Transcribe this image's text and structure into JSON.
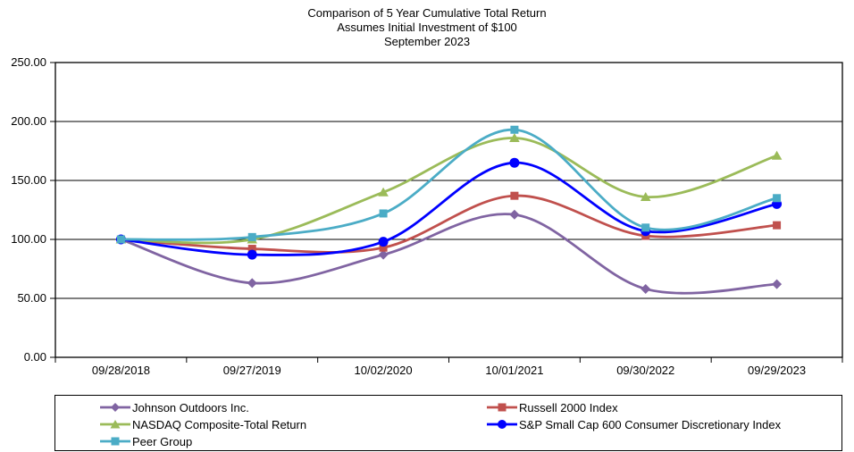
{
  "chart_data": {
    "type": "line",
    "title": "Comparison of 5 Year Cumulative Total Return",
    "subtitle": "Assumes Initial Investment of $100",
    "date_label": "September 2023",
    "categories": [
      "09/28/2018",
      "09/27/2019",
      "10/02/2020",
      "10/01/2021",
      "09/30/2022",
      "09/29/2023"
    ],
    "y_tick_labels": [
      "0.00",
      "50.00",
      "100.00",
      "150.00",
      "200.00",
      "250.00"
    ],
    "ylim": [
      0,
      250
    ],
    "y_step": 50,
    "grid": "horizontal",
    "line_style": "smooth",
    "legend_position": "bottom",
    "axis_color": "#000000",
    "series": [
      {
        "name": "Johnson Outdoors Inc.",
        "color": "#8064A2",
        "marker": "diamond",
        "values": [
          100,
          63,
          87,
          121,
          58,
          62
        ]
      },
      {
        "name": "Russell 2000 Index",
        "color": "#C0504D",
        "marker": "square",
        "values": [
          100,
          92,
          93,
          137,
          103,
          112
        ]
      },
      {
        "name": "NASDAQ Composite-Total Return",
        "color": "#9BBB59",
        "marker": "triangle",
        "values": [
          100,
          100,
          140,
          186,
          136,
          171
        ]
      },
      {
        "name": "S&P Small Cap 600 Consumer Discretionary Index",
        "color": "#0000FF",
        "marker": "circle",
        "values": [
          100,
          87,
          98,
          165,
          107,
          130
        ]
      },
      {
        "name": "Peer Group",
        "color": "#4BACC6",
        "marker": "square",
        "values": [
          100,
          102,
          122,
          193,
          110,
          135
        ]
      }
    ]
  }
}
